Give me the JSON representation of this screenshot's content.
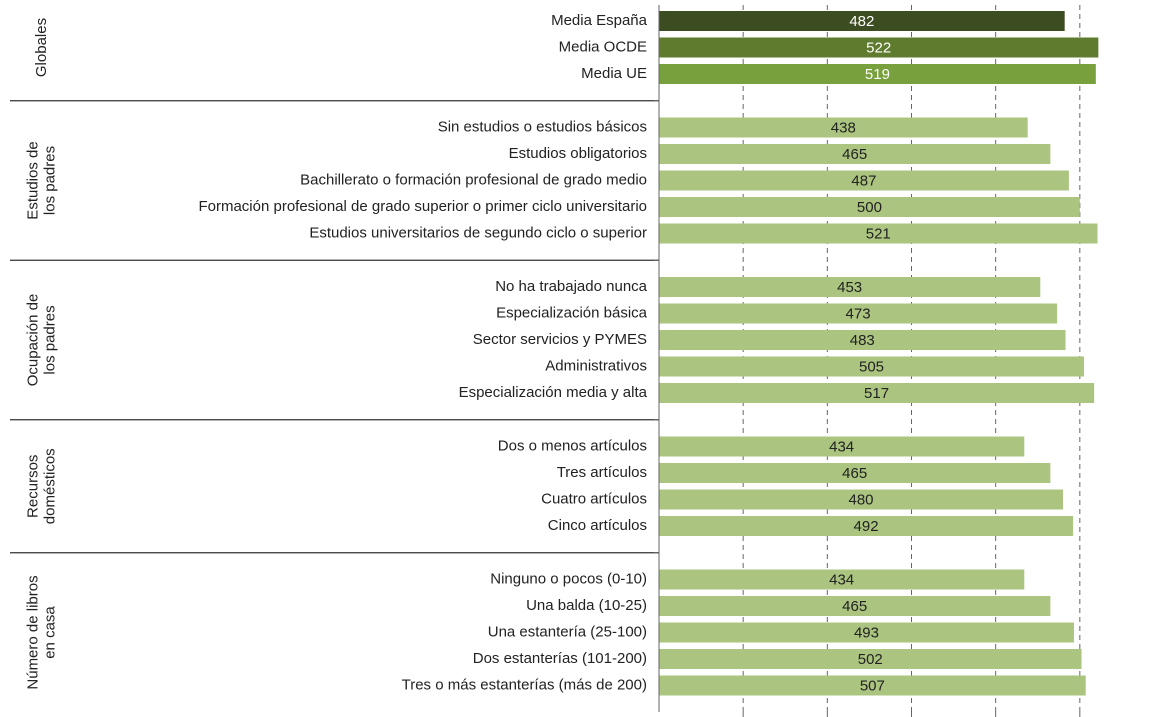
{
  "chart_data": {
    "type": "grouped-hbar",
    "xlim": [
      0,
      600
    ],
    "xticks": [
      100,
      200,
      300,
      400,
      500
    ],
    "grid": true,
    "groups": [
      {
        "name": [
          "Globales"
        ],
        "categories": [
          "Media España",
          "Media OCDE",
          "Media UE"
        ],
        "values": [
          482,
          522,
          519
        ],
        "colors": [
          "#3d4d22",
          "#5f7b2e",
          "#78a03c"
        ]
      },
      {
        "name": [
          "Estudios de",
          "los padres"
        ],
        "categories": [
          "Sin estudios o estudios básicos",
          "Estudios obligatorios",
          "Bachillerato o formación profesional de grado medio",
          "Formación profesional de grado superior  o primer ciclo universitario",
          "Estudios universitarios de segundo ciclo o superior"
        ],
        "values": [
          438,
          465,
          487,
          500,
          521
        ],
        "color": "#abc47f"
      },
      {
        "name": [
          "Ocupación de",
          "los padres"
        ],
        "categories": [
          "No ha trabajado nunca",
          "Especialización básica",
          "Sector servicios y PYMES",
          "Administrativos",
          "Especialización media y alta"
        ],
        "values": [
          453,
          473,
          483,
          505,
          517
        ],
        "color": "#abc47f"
      },
      {
        "name": [
          "Recursos",
          "domésticos"
        ],
        "categories": [
          "Dos o menos artículos",
          "Tres artículos",
          "Cuatro artículos",
          "Cinco artículos"
        ],
        "values": [
          434,
          465,
          480,
          492
        ],
        "color": "#abc47f"
      },
      {
        "name": [
          "Número de libros",
          "en casa"
        ],
        "categories": [
          "Ninguno o pocos (0-10)",
          "Una balda (10-25)",
          "Una estantería (25-100)",
          "Dos estanterías (101-200)",
          "Tres o más estanterías (más de 200)"
        ],
        "values": [
          434,
          465,
          493,
          502,
          507
        ],
        "color": "#abc47f"
      }
    ]
  }
}
